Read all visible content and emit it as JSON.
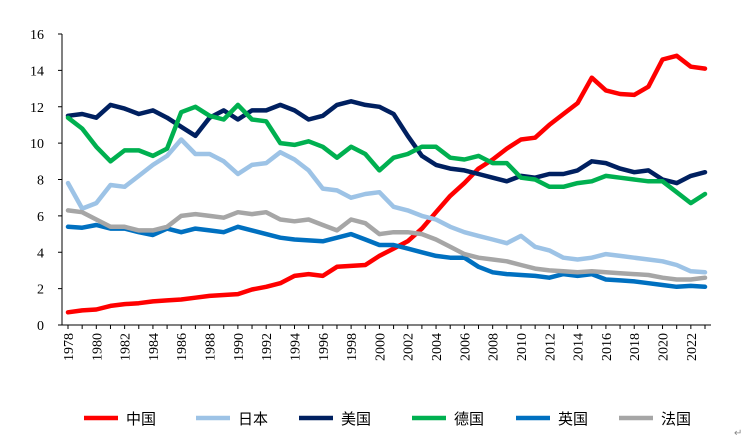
{
  "chart_data": {
    "type": "line",
    "title": "",
    "xlabel": "",
    "ylabel": "",
    "ylim": [
      0,
      16
    ],
    "yticks": [
      0,
      2,
      4,
      6,
      8,
      10,
      12,
      14,
      16
    ],
    "xlim": [
      1978,
      2023
    ],
    "xtick_labels": [
      "1978",
      "1980",
      "1982",
      "1984",
      "1986",
      "1988",
      "1990",
      "1992",
      "1994",
      "1996",
      "1998",
      "2000",
      "2002",
      "2004",
      "2006",
      "2008",
      "2010",
      "2012",
      "2014",
      "2016",
      "2018",
      "2020",
      "2022"
    ],
    "grid": false,
    "legend_position": "bottom",
    "x": [
      1978,
      1979,
      1980,
      1981,
      1982,
      1983,
      1984,
      1985,
      1986,
      1987,
      1988,
      1989,
      1990,
      1991,
      1992,
      1993,
      1994,
      1995,
      1996,
      1997,
      1998,
      1999,
      2000,
      2001,
      2002,
      2003,
      2004,
      2005,
      2006,
      2007,
      2008,
      2009,
      2010,
      2011,
      2012,
      2013,
      2014,
      2015,
      2016,
      2017,
      2018,
      2019,
      2020,
      2021,
      2022,
      2023
    ],
    "series": [
      {
        "name": "中国",
        "color": "#ff0000",
        "values": [
          0.7,
          0.8,
          0.85,
          1.05,
          1.15,
          1.2,
          1.3,
          1.35,
          1.4,
          1.5,
          1.6,
          1.65,
          1.7,
          1.95,
          2.1,
          2.3,
          2.7,
          2.8,
          2.7,
          3.2,
          3.25,
          3.3,
          3.8,
          4.2,
          4.6,
          5.3,
          6.2,
          7.1,
          7.8,
          8.6,
          9.1,
          9.7,
          10.2,
          10.3,
          11.0,
          11.6,
          12.2,
          13.6,
          12.9,
          12.7,
          12.65,
          13.1,
          14.6,
          14.8,
          14.2,
          14.1
        ]
      },
      {
        "name": "日本",
        "color": "#9dc3e6",
        "values": [
          7.8,
          6.4,
          6.7,
          7.7,
          7.6,
          8.2,
          8.8,
          9.3,
          10.2,
          9.4,
          9.4,
          9.0,
          8.3,
          8.8,
          8.9,
          9.5,
          9.1,
          8.5,
          7.5,
          7.4,
          7.0,
          7.2,
          7.3,
          6.5,
          6.3,
          6.0,
          5.8,
          5.4,
          5.1,
          4.9,
          4.7,
          4.5,
          4.9,
          4.3,
          4.1,
          3.7,
          3.6,
          3.7,
          3.9,
          3.8,
          3.7,
          3.6,
          3.5,
          3.3,
          2.95,
          2.9
        ]
      },
      {
        "name": "美国",
        "color": "#002060",
        "values": [
          11.5,
          11.6,
          11.4,
          12.1,
          11.9,
          11.6,
          11.8,
          11.4,
          10.9,
          10.4,
          11.4,
          11.8,
          11.3,
          11.8,
          11.8,
          12.1,
          11.8,
          11.3,
          11.5,
          12.1,
          12.3,
          12.1,
          12.0,
          11.6,
          10.4,
          9.3,
          8.8,
          8.6,
          8.5,
          8.3,
          8.1,
          7.9,
          8.2,
          8.1,
          8.3,
          8.3,
          8.5,
          9.0,
          8.9,
          8.6,
          8.4,
          8.5,
          8.0,
          7.8,
          8.2,
          8.4
        ]
      },
      {
        "name": "德国",
        "color": "#00b050",
        "values": [
          11.4,
          10.8,
          9.8,
          9.0,
          9.6,
          9.6,
          9.3,
          9.7,
          11.7,
          12.0,
          11.5,
          11.3,
          12.1,
          11.3,
          11.2,
          10.0,
          9.9,
          10.1,
          9.8,
          9.2,
          9.8,
          9.4,
          8.5,
          9.2,
          9.4,
          9.8,
          9.8,
          9.2,
          9.1,
          9.3,
          8.9,
          8.9,
          8.1,
          8.0,
          7.6,
          7.6,
          7.8,
          7.9,
          8.2,
          8.1,
          8.0,
          7.9,
          7.9,
          7.3,
          6.7,
          7.2
        ]
      },
      {
        "name": "英国",
        "color": "#0070c0",
        "values": [
          5.4,
          5.35,
          5.5,
          5.3,
          5.3,
          5.1,
          4.95,
          5.3,
          5.1,
          5.3,
          5.2,
          5.1,
          5.4,
          5.2,
          5.0,
          4.8,
          4.7,
          4.65,
          4.6,
          4.8,
          5.0,
          4.7,
          4.4,
          4.4,
          4.2,
          4.0,
          3.8,
          3.7,
          3.7,
          3.2,
          2.9,
          2.8,
          2.75,
          2.7,
          2.6,
          2.8,
          2.7,
          2.8,
          2.5,
          2.45,
          2.4,
          2.3,
          2.2,
          2.1,
          2.15,
          2.1
        ]
      },
      {
        "name": "法国",
        "color": "#a6a6a6",
        "values": [
          6.3,
          6.2,
          5.8,
          5.4,
          5.4,
          5.2,
          5.2,
          5.4,
          6.0,
          6.1,
          6.0,
          5.9,
          6.2,
          6.1,
          6.2,
          5.8,
          5.7,
          5.8,
          5.5,
          5.2,
          5.8,
          5.6,
          5.0,
          5.1,
          5.1,
          5.0,
          4.7,
          4.3,
          3.9,
          3.7,
          3.6,
          3.5,
          3.3,
          3.1,
          3.0,
          2.95,
          2.9,
          2.95,
          2.9,
          2.85,
          2.8,
          2.75,
          2.6,
          2.5,
          2.5,
          2.6
        ]
      }
    ]
  }
}
